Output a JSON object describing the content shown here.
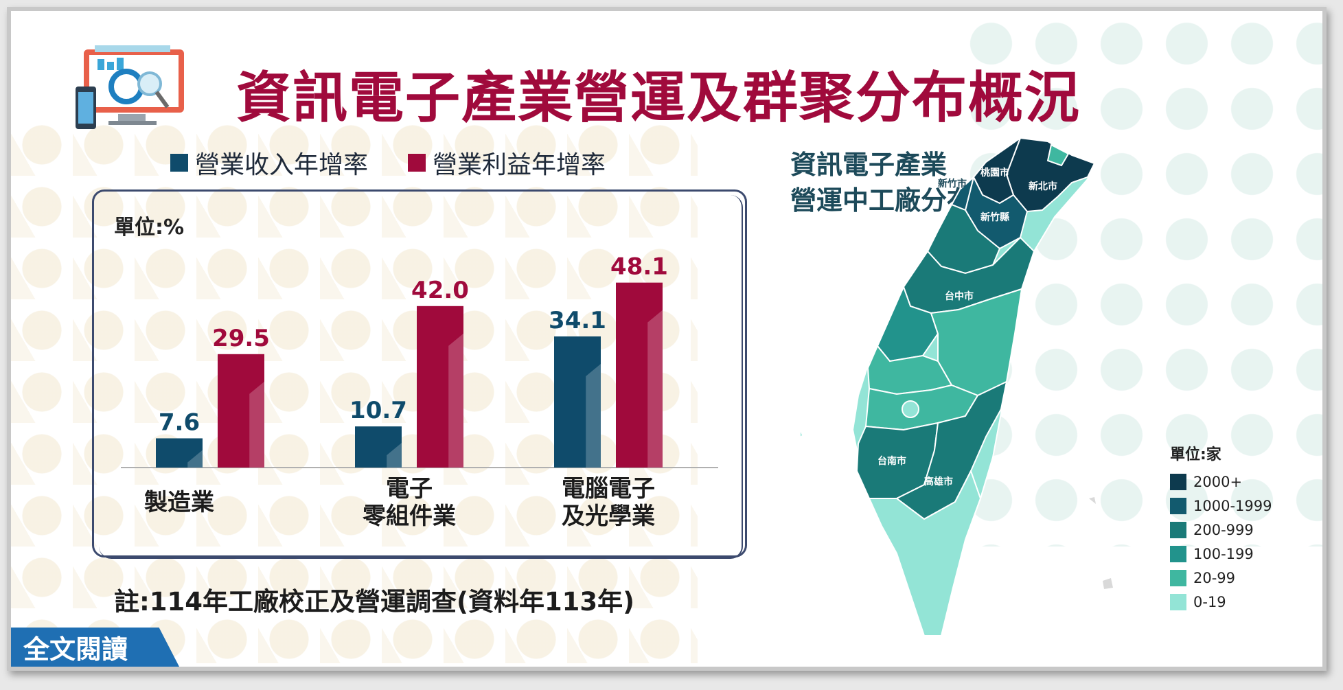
{
  "title": "資訊電子產業營運及群聚分布概況",
  "legend": [
    {
      "label": "營業收入年增率",
      "color": "#0f4b6b"
    },
    {
      "label": "營業利益年增率",
      "color": "#a00a3c"
    }
  ],
  "unit_label": "單位:%",
  "chart_data": {
    "type": "bar",
    "categories": [
      "製造業",
      "電子\n零組件業",
      "電腦電子\n及光學業"
    ],
    "series": [
      {
        "name": "營業收入年增率",
        "values": [
          7.6,
          10.7,
          34.1
        ],
        "color": "#0f4b6b"
      },
      {
        "name": "營業利益年增率",
        "values": [
          29.5,
          42.0,
          48.1
        ],
        "color": "#a00a3c"
      }
    ],
    "value_labels": [
      [
        "7.6",
        "10.7",
        "34.1"
      ],
      [
        "29.5",
        "42.0",
        "48.1"
      ]
    ],
    "ylim": [
      0,
      50
    ],
    "grid": false
  },
  "note": "註:114年工廠校正及營運調查(資料年113年)",
  "read_button": "全文閱讀",
  "map": {
    "title_line1": "資訊電子產業",
    "title_line2": "營運中工廠分布",
    "labels": [
      "桃園市",
      "新北市",
      "新竹市",
      "新竹縣",
      "台中市",
      "台南市",
      "高雄市"
    ],
    "legend_title": "單位:家",
    "legend": [
      {
        "label": "2000+",
        "color": "#0d3a4e"
      },
      {
        "label": "1000-1999",
        "color": "#125a6e"
      },
      {
        "label": "200-999",
        "color": "#1a7a78"
      },
      {
        "label": "100-199",
        "color": "#22938c"
      },
      {
        "label": "20-99",
        "color": "#3fb7a0"
      },
      {
        "label": "0-19",
        "color": "#93e4d6"
      }
    ]
  }
}
